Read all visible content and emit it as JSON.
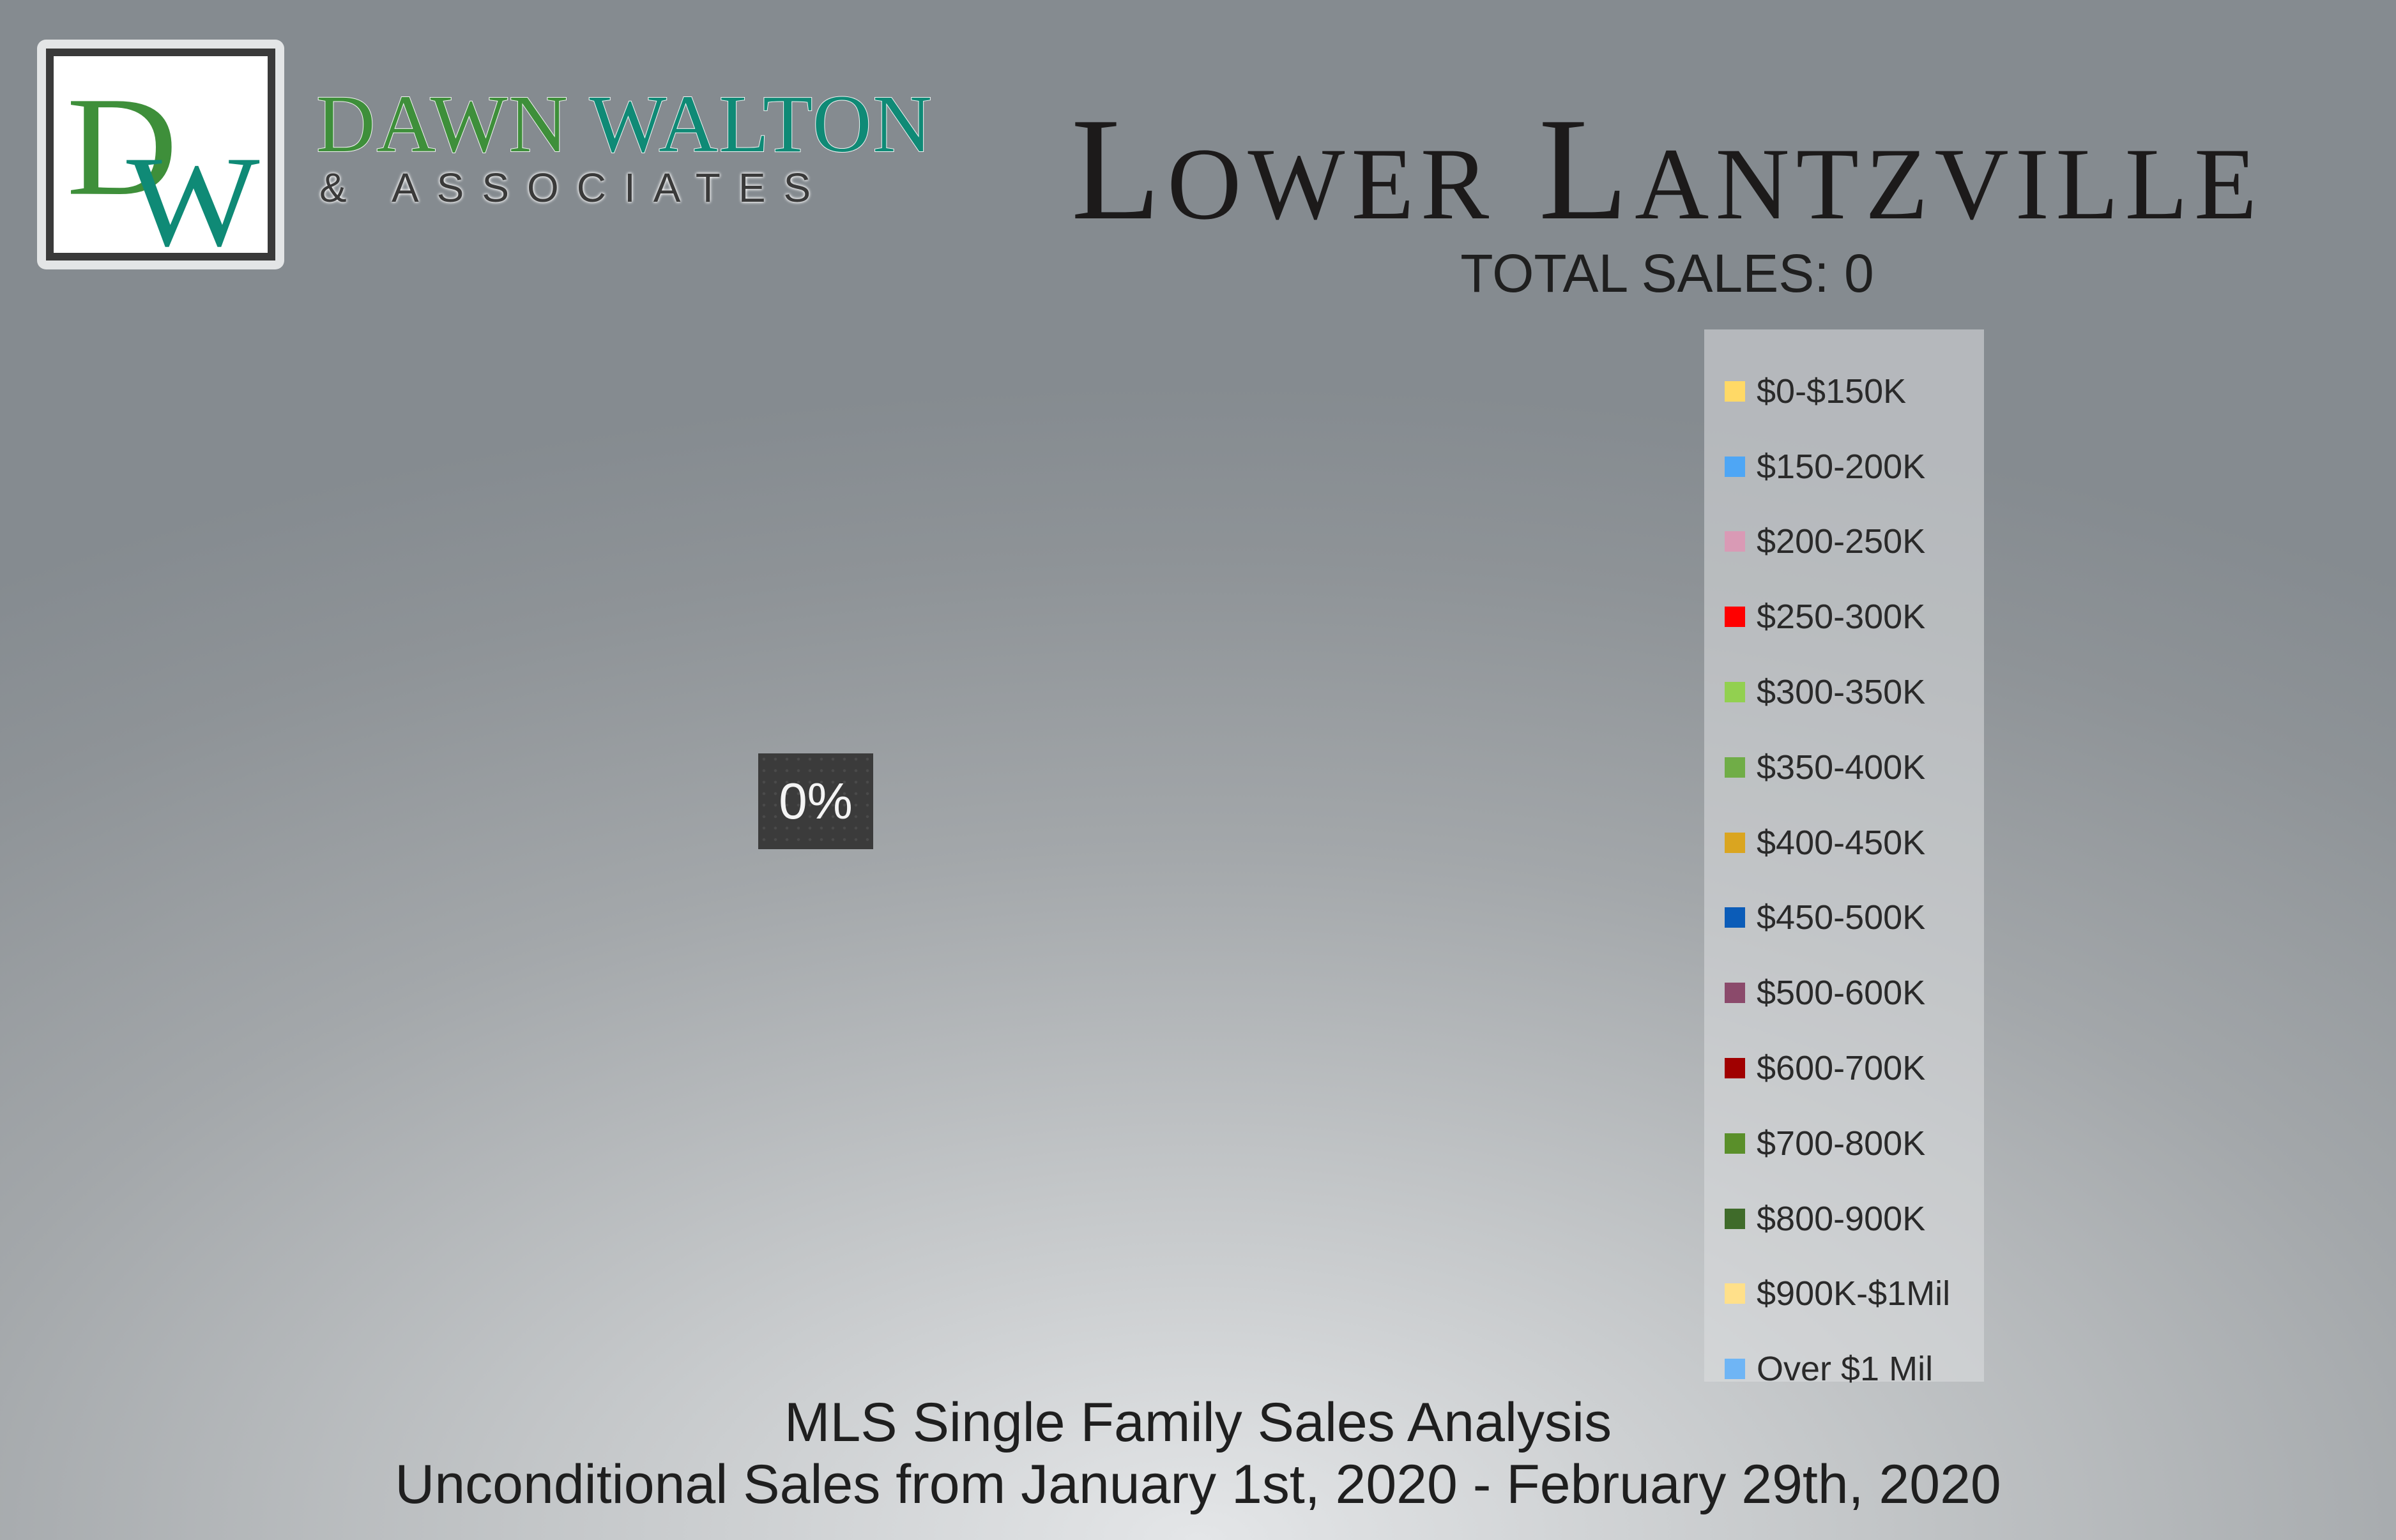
{
  "brand": {
    "monogram": "DW",
    "name_part_1": "DAWN",
    "name_part_2": "WALTON",
    "subtitle": "& ASSOCIATES",
    "colors": {
      "green": "#3e8f3a",
      "teal": "#0f8a76"
    }
  },
  "chart_data": {
    "type": "pie",
    "title": "Lower Lantzville",
    "subtitle": "TOTAL SALES: 0",
    "categories": [
      "$0-$150K",
      "$150-200K",
      "$200-250K",
      "$250-300K",
      "$300-350K",
      "$350-400K",
      "$400-450K",
      "$450-500K",
      "$500-600K",
      "$600-700K",
      "$700-800K",
      "$800-900K",
      "$900K-$1Mil",
      "Over $1 Mil"
    ],
    "values": [
      0,
      0,
      0,
      0,
      0,
      0,
      0,
      0,
      0,
      0,
      0,
      0,
      0,
      0
    ],
    "colors": [
      "#ffd966",
      "#4ea6f5",
      "#d99ab5",
      "#ff0000",
      "#92d050",
      "#70ad47",
      "#daa520",
      "#0b5cb8",
      "#8b4a6b",
      "#a00000",
      "#5a8f2a",
      "#3f6b2a",
      "#ffe08a",
      "#6fb5f5"
    ],
    "data_labels": [
      "0%"
    ],
    "legend_position": "right"
  },
  "footer": {
    "line1": "MLS Single Family Sales Analysis",
    "line2": "Unconditional Sales from January 1st, 2020 - February 29th, 2020"
  }
}
